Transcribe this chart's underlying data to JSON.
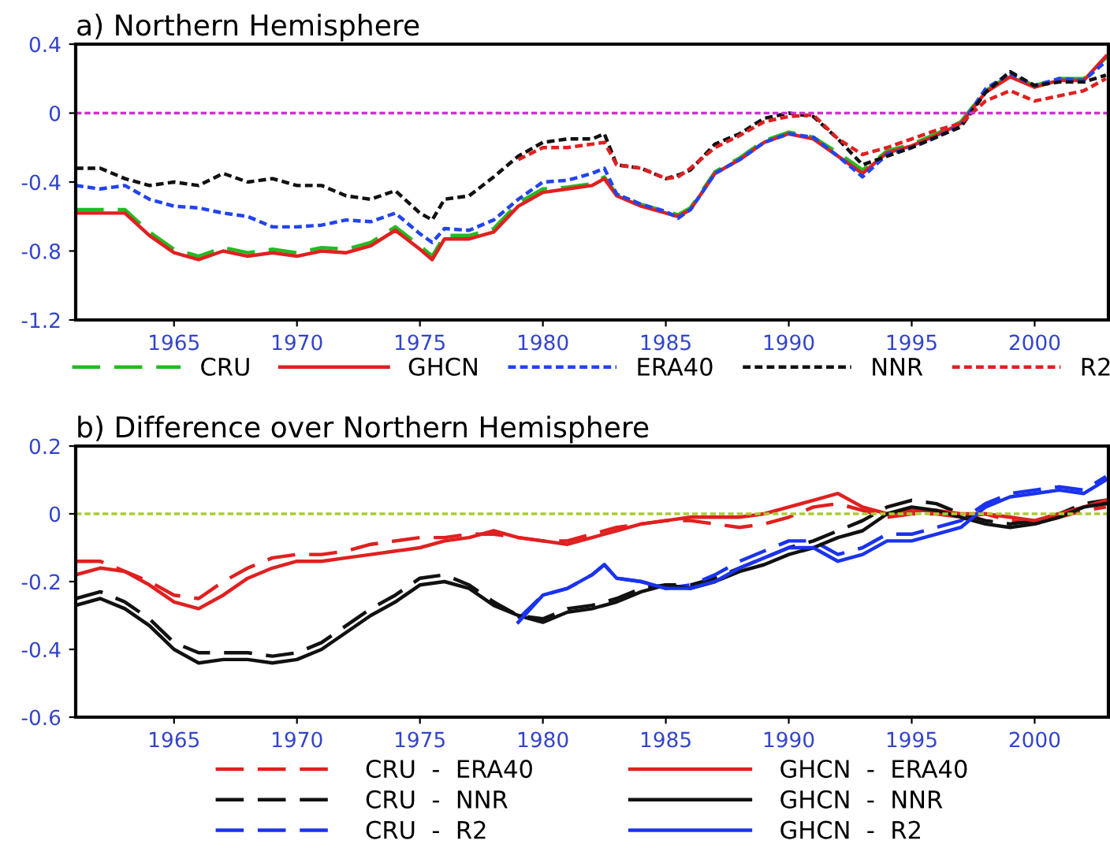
{
  "chart_data": [
    {
      "type": "line",
      "title": "a) Northern Hemisphere",
      "xlim": [
        1961,
        2003
      ],
      "xticks": [
        1965,
        1970,
        1975,
        1980,
        1985,
        1990,
        1995,
        2000
      ],
      "ylim": [
        -1.2,
        0.4
      ],
      "yticks": [
        {
          "value": -1.2,
          "label": "-1.2"
        },
        {
          "value": -0.8,
          "label": "-0.8"
        },
        {
          "value": -0.4,
          "label": "-0.4"
        },
        0,
        0.4
      ],
      "legend": "bottom",
      "grid": false,
      "x": [
        1961,
        1962,
        1963,
        1964,
        1965,
        1966,
        1967,
        1968,
        1969,
        1970,
        1971,
        1972,
        1973,
        1974,
        1975,
        1975.5,
        1976,
        1977,
        1978,
        1979,
        1980,
        1981,
        1982,
        1982.5,
        1983,
        1984,
        1985,
        1985.5,
        1986,
        1987,
        1988,
        1989,
        1990,
        1991,
        1992,
        1993,
        1994,
        1995,
        1996,
        1997,
        1998,
        1999,
        2000,
        2001,
        2002,
        2002.9
      ],
      "ref_lines": [
        {
          "axis": "y",
          "value": 0,
          "color": "#cc33cc",
          "line_style": "dotted"
        }
      ],
      "series": [
        {
          "name": "CRU",
          "color": "#22bb22",
          "line_style": "dashed",
          "values": [
            -0.56,
            -0.56,
            -0.56,
            -0.69,
            -0.79,
            -0.83,
            -0.78,
            -0.81,
            -0.79,
            -0.81,
            -0.78,
            -0.79,
            -0.75,
            -0.66,
            -0.77,
            -0.83,
            -0.71,
            -0.71,
            -0.67,
            -0.52,
            -0.44,
            -0.43,
            -0.41,
            -0.37,
            -0.47,
            -0.53,
            -0.57,
            -0.59,
            -0.55,
            -0.34,
            -0.26,
            -0.16,
            -0.11,
            -0.14,
            -0.23,
            -0.33,
            -0.22,
            -0.18,
            -0.12,
            -0.05,
            0.13,
            0.22,
            0.16,
            0.2,
            0.2,
            0.32
          ]
        },
        {
          "name": "GHCN",
          "color": "#e02020",
          "line_style": "solid",
          "values": [
            -0.58,
            -0.58,
            -0.58,
            -0.71,
            -0.81,
            -0.85,
            -0.8,
            -0.83,
            -0.81,
            -0.83,
            -0.8,
            -0.81,
            -0.77,
            -0.68,
            -0.79,
            -0.85,
            -0.73,
            -0.73,
            -0.69,
            -0.54,
            -0.46,
            -0.44,
            -0.42,
            -0.38,
            -0.48,
            -0.54,
            -0.58,
            -0.6,
            -0.56,
            -0.35,
            -0.27,
            -0.17,
            -0.12,
            -0.15,
            -0.25,
            -0.35,
            -0.23,
            -0.19,
            -0.13,
            -0.06,
            0.12,
            0.21,
            0.15,
            0.19,
            0.19,
            0.33
          ]
        },
        {
          "name": "ERA40",
          "color": "#2244ee",
          "line_style": "dotted",
          "values": [
            -0.42,
            -0.44,
            -0.42,
            -0.5,
            -0.54,
            -0.55,
            -0.58,
            -0.6,
            -0.66,
            -0.66,
            -0.65,
            -0.62,
            -0.63,
            -0.58,
            -0.7,
            -0.75,
            -0.67,
            -0.68,
            -0.62,
            -0.5,
            -0.4,
            -0.39,
            -0.35,
            -0.32,
            -0.47,
            -0.53,
            -0.57,
            -0.61,
            -0.56,
            -0.35,
            -0.27,
            -0.17,
            -0.12,
            -0.14,
            -0.25,
            -0.37,
            -0.24,
            -0.2,
            -0.14,
            -0.07,
            0.14,
            0.23,
            0.16,
            0.2,
            0.19,
            0.3
          ]
        },
        {
          "name": "NNR",
          "color": "#111111",
          "line_style": "dotted",
          "values": [
            -0.32,
            -0.32,
            -0.38,
            -0.42,
            -0.4,
            -0.42,
            -0.35,
            -0.4,
            -0.38,
            -0.42,
            -0.42,
            -0.48,
            -0.5,
            -0.45,
            -0.58,
            -0.62,
            -0.5,
            -0.48,
            -0.37,
            -0.25,
            -0.17,
            -0.15,
            -0.15,
            -0.12,
            -0.3,
            -0.32,
            -0.38,
            -0.36,
            -0.33,
            -0.18,
            -0.12,
            -0.03,
            0.0,
            -0.02,
            -0.15,
            -0.3,
            -0.25,
            -0.2,
            -0.14,
            -0.08,
            0.12,
            0.24,
            0.16,
            0.18,
            0.18,
            0.22
          ]
        },
        {
          "name": "R2",
          "color": "#e02020",
          "line_style": "dotted",
          "x": [
            1979,
            1980,
            1981,
            1982,
            1982.5,
            1983,
            1984,
            1985,
            1985.5,
            1986,
            1987,
            1988,
            1989,
            1990,
            1991,
            1992,
            1993,
            1994,
            1995,
            1996,
            1997,
            1998,
            1999,
            2000,
            2001,
            2002,
            2002.9
          ],
          "values": [
            -0.27,
            -0.2,
            -0.2,
            -0.18,
            -0.17,
            -0.3,
            -0.32,
            -0.38,
            -0.37,
            -0.32,
            -0.2,
            -0.13,
            -0.05,
            -0.02,
            -0.01,
            -0.15,
            -0.24,
            -0.2,
            -0.15,
            -0.1,
            -0.06,
            0.07,
            0.13,
            0.07,
            0.1,
            0.13,
            0.2
          ]
        }
      ]
    },
    {
      "type": "line",
      "title": "b) Difference over Northern Hemisphere",
      "xlim": [
        1961,
        2003
      ],
      "xticks": [
        1965,
        1970,
        1975,
        1980,
        1985,
        1990,
        1995,
        2000
      ],
      "ylim": [
        -0.6,
        0.2
      ],
      "yticks": [
        {
          "value": -0.6,
          "label": "-0.6"
        },
        {
          "value": -0.4,
          "label": "-0.4"
        },
        {
          "value": -0.2,
          "label": "-0.2"
        },
        0,
        0.2
      ],
      "legend": "bottom",
      "grid": false,
      "x": [
        1961,
        1962,
        1963,
        1964,
        1965,
        1966,
        1967,
        1968,
        1969,
        1970,
        1971,
        1972,
        1973,
        1974,
        1975,
        1976,
        1977,
        1978,
        1979,
        1980,
        1981,
        1982,
        1983,
        1984,
        1985,
        1986,
        1987,
        1988,
        1989,
        1990,
        1991,
        1992,
        1993,
        1994,
        1995,
        1996,
        1997,
        1998,
        1999,
        2000,
        2001,
        2002,
        2002.9
      ],
      "ref_lines": [
        {
          "axis": "y",
          "value": 0,
          "color": "#aacc33",
          "line_style": "dotted"
        }
      ],
      "series": [
        {
          "name": "CRU  -  ERA40",
          "color": "#e02020",
          "line_style": "dashed",
          "values": [
            -0.14,
            -0.14,
            -0.17,
            -0.2,
            -0.24,
            -0.25,
            -0.2,
            -0.16,
            -0.13,
            -0.12,
            -0.12,
            -0.11,
            -0.09,
            -0.08,
            -0.07,
            -0.07,
            -0.06,
            -0.06,
            -0.07,
            -0.08,
            -0.08,
            -0.06,
            -0.04,
            -0.03,
            -0.02,
            -0.02,
            -0.03,
            -0.04,
            -0.03,
            -0.01,
            0.02,
            0.03,
            0.01,
            -0.01,
            0.0,
            0.0,
            -0.01,
            0.0,
            -0.02,
            -0.03,
            -0.01,
            0.01,
            0.02
          ]
        },
        {
          "name": "CRU  -  NNR",
          "color": "#111111",
          "line_style": "dashed",
          "values": [
            -0.25,
            -0.23,
            -0.26,
            -0.31,
            -0.38,
            -0.41,
            -0.41,
            -0.41,
            -0.42,
            -0.41,
            -0.38,
            -0.33,
            -0.28,
            -0.24,
            -0.19,
            -0.18,
            -0.21,
            -0.26,
            -0.3,
            -0.31,
            -0.28,
            -0.27,
            -0.25,
            -0.22,
            -0.21,
            -0.21,
            -0.19,
            -0.16,
            -0.13,
            -0.1,
            -0.08,
            -0.05,
            -0.02,
            0.02,
            0.04,
            0.03,
            0.0,
            -0.02,
            -0.03,
            -0.02,
            0.0,
            0.03,
            0.04
          ]
        },
        {
          "name": "CRU  -  R2",
          "color": "#1a33ee",
          "line_style": "dashed",
          "x": [
            1979,
            1980,
            1981,
            1982,
            1982.5,
            1983,
            1984,
            1985,
            1986,
            1987,
            1988,
            1989,
            1990,
            1991,
            1992,
            1993,
            1994,
            1995,
            1996,
            1997,
            1998,
            1999,
            2000,
            2001,
            2002,
            2002.9
          ],
          "values": [
            -0.31,
            -0.24,
            -0.22,
            -0.18,
            -0.15,
            -0.19,
            -0.2,
            -0.22,
            -0.21,
            -0.18,
            -0.14,
            -0.11,
            -0.08,
            -0.08,
            -0.12,
            -0.1,
            -0.06,
            -0.06,
            -0.04,
            -0.02,
            0.03,
            0.06,
            0.07,
            0.08,
            0.07,
            0.11
          ]
        },
        {
          "name": "GHCN  -  ERA40",
          "color": "#e02020",
          "line_style": "solid",
          "values": [
            -0.18,
            -0.16,
            -0.17,
            -0.21,
            -0.26,
            -0.28,
            -0.24,
            -0.19,
            -0.16,
            -0.14,
            -0.14,
            -0.13,
            -0.12,
            -0.11,
            -0.1,
            -0.08,
            -0.07,
            -0.05,
            -0.07,
            -0.08,
            -0.09,
            -0.07,
            -0.05,
            -0.03,
            -0.02,
            -0.01,
            -0.01,
            -0.01,
            0.0,
            0.02,
            0.04,
            0.06,
            0.02,
            0.0,
            0.01,
            0.01,
            0.0,
            0.0,
            -0.01,
            -0.02,
            0.0,
            0.02,
            0.04
          ]
        },
        {
          "name": "GHCN  -  NNR",
          "color": "#111111",
          "line_style": "solid",
          "values": [
            -0.27,
            -0.25,
            -0.28,
            -0.33,
            -0.4,
            -0.44,
            -0.43,
            -0.43,
            -0.44,
            -0.43,
            -0.4,
            -0.35,
            -0.3,
            -0.26,
            -0.21,
            -0.2,
            -0.22,
            -0.27,
            -0.3,
            -0.32,
            -0.29,
            -0.28,
            -0.26,
            -0.23,
            -0.21,
            -0.22,
            -0.2,
            -0.17,
            -0.15,
            -0.12,
            -0.1,
            -0.07,
            -0.05,
            0.0,
            0.02,
            0.01,
            -0.01,
            -0.03,
            -0.04,
            -0.03,
            -0.01,
            0.02,
            0.03
          ]
        },
        {
          "name": "GHCN  -  R2",
          "color": "#1a33ee",
          "line_style": "solid",
          "x": [
            1979,
            1980,
            1981,
            1982,
            1982.5,
            1983,
            1984,
            1985,
            1986,
            1987,
            1988,
            1989,
            1990,
            1991,
            1992,
            1993,
            1994,
            1995,
            1996,
            1997,
            1998,
            1999,
            2000,
            2001,
            2002,
            2002.9
          ],
          "values": [
            -0.32,
            -0.24,
            -0.22,
            -0.18,
            -0.15,
            -0.19,
            -0.2,
            -0.22,
            -0.22,
            -0.2,
            -0.16,
            -0.13,
            -0.1,
            -0.1,
            -0.14,
            -0.12,
            -0.08,
            -0.08,
            -0.06,
            -0.04,
            0.02,
            0.05,
            0.06,
            0.07,
            0.06,
            0.1
          ]
        }
      ]
    }
  ]
}
